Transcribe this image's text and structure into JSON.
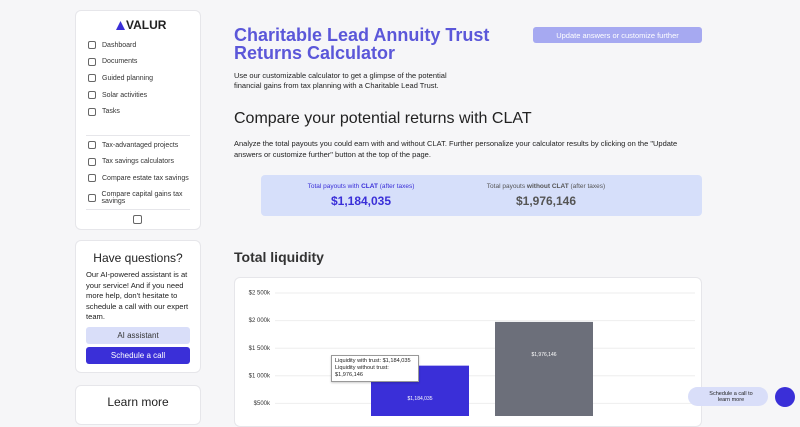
{
  "sidebar": {
    "logo": "VALUR",
    "nav": [
      "Dashboard",
      "Documents",
      "Guided planning",
      "Solar activities",
      "Tasks"
    ],
    "tools": [
      "Tax-advantaged projects",
      "Tax savings calculators",
      "Compare estate tax savings",
      "Compare capital gains tax savings"
    ]
  },
  "help": {
    "title": "Have questions?",
    "text": "Our AI-powered assistant is at your service! And if you need more help, don't hesitate to schedule a call with our expert team.",
    "buttons": [
      "AI assistant",
      "Schedule a call"
    ]
  },
  "learn_more": {
    "title": "Learn more"
  },
  "header": {
    "title": "Charitable Lead Annuity Trust Returns Calculator",
    "button": "Update answers or customize further",
    "intro": "Use our customizable calculator to get a glimpse of the potential financial gains from tax planning with a Charitable Lead Trust."
  },
  "compare": {
    "heading": "Compare your potential returns with CLAT",
    "text": "Analyze the total payouts you could earn with and without CLAT. Further personalize your calculator results by clicking on the \"Update answers or customize further\" button at the top of the page.",
    "stats": [
      {
        "pre": "Total payouts with",
        "bold": "CLAT",
        "post": "(after taxes)",
        "value": "$1,184,035"
      },
      {
        "pre": "Total payouts",
        "bold": "without CLAT",
        "post": "(after taxes)",
        "value": "$1,976,146"
      }
    ]
  },
  "liquidity": {
    "heading": "Total liquidity",
    "tooltip": [
      "Liquidity with trust: $1,184,035",
      "Liquidity without trust: $1,976,146"
    ]
  },
  "chart_data": {
    "type": "bar",
    "categories": [
      null,
      null
    ],
    "values": [
      1184035,
      1976146
    ],
    "value_labels": [
      "$1,184,035",
      "$1,976,146"
    ],
    "colors": [
      "#3a2fd8",
      "#6c6f7a"
    ],
    "ylim": [
      0,
      2500000
    ],
    "yticks": [
      {
        "value": 500000,
        "label": "$500k"
      },
      {
        "value": 1000000,
        "label": "$1 000k"
      },
      {
        "value": 1500000,
        "label": "$1 500k"
      },
      {
        "value": 2000000,
        "label": "$2 000k"
      },
      {
        "value": 2500000,
        "label": "$2 500k"
      }
    ],
    "grid": true
  },
  "chat": {
    "text": "Schedule a call to learn more"
  }
}
